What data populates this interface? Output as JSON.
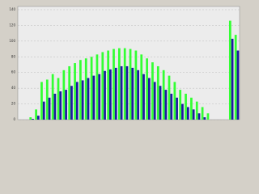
{
  "chart_data": {
    "type": "bar",
    "categories": [
      null,
      null,
      null,
      null,
      null,
      null,
      null,
      null,
      null,
      null,
      null,
      null,
      null,
      null,
      null,
      null,
      null,
      null,
      null,
      null,
      null,
      null,
      null,
      null,
      null,
      null,
      null,
      null,
      null,
      null,
      null,
      null,
      null,
      null,
      null,
      null,
      null,
      null,
      null,
      null
    ],
    "series": [
      {
        "color": "#33ff33",
        "values": [
          0,
          0,
          3,
          13,
          48,
          51,
          58,
          53,
          63,
          68,
          72,
          76,
          78,
          80,
          83,
          86,
          88,
          90,
          91,
          91,
          90,
          88,
          83,
          78,
          73,
          68,
          63,
          56,
          48,
          38,
          33,
          28,
          23,
          16,
          8,
          0,
          0,
          0,
          126,
          108
        ]
      },
      {
        "color": "#1a1aa0",
        "values": [
          0,
          0,
          1,
          5,
          23,
          28,
          33,
          36,
          38,
          43,
          48,
          50,
          53,
          56,
          58,
          62,
          64,
          66,
          68,
          68,
          66,
          63,
          58,
          53,
          48,
          43,
          38,
          33,
          28,
          20,
          16,
          13,
          8,
          3,
          0,
          0,
          0,
          0,
          103,
          88
        ]
      }
    ],
    "ylim": [
      0,
      140
    ],
    "yticks": [
      0,
      20,
      40,
      60,
      80,
      100,
      120,
      140
    ],
    "grid": true
  }
}
